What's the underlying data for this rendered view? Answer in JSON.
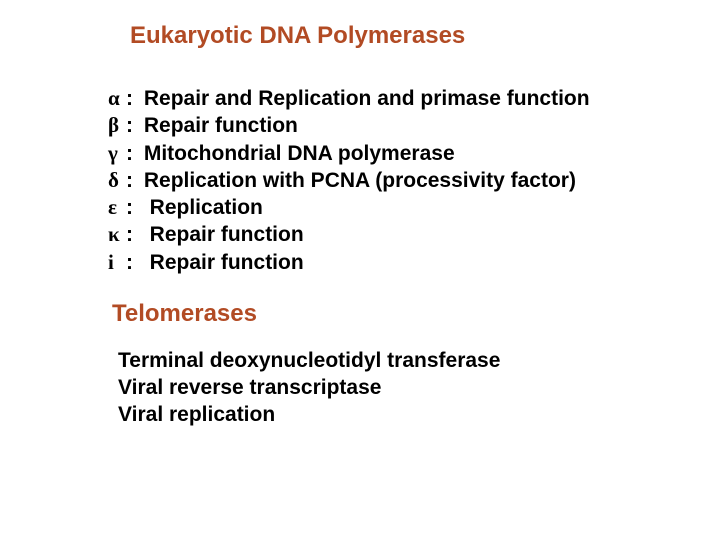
{
  "title_color": "#b24b24",
  "text_color": "#000000",
  "background_color": "#ffffff",
  "title_fontsize": 24,
  "body_fontsize": 21,
  "heading1": "Eukaryotic DNA Polymerases",
  "polymerases": {
    "alpha": {
      "symbol": "α",
      "sep": " :",
      "desc": "Repair and Replication and primase function"
    },
    "beta": {
      "symbol": "β",
      "sep": " :",
      "desc": "Repair function"
    },
    "gamma": {
      "symbol": "γ",
      "sep": " :",
      "desc": "Mitochondrial DNA polymerase"
    },
    "delta": {
      "symbol": "δ",
      "sep": " :",
      "desc": "Replication with PCNA (processivity factor)"
    },
    "epsilon": {
      "symbol": "ε",
      "sep": ":",
      "desc": "Replication"
    },
    "kappa": {
      "symbol": "κ",
      "sep": ":",
      "desc": "Repair function"
    },
    "iota": {
      "symbol": "i",
      "sep": ":",
      "desc": "Repair function"
    }
  },
  "heading2": "Telomerases",
  "telomerases": {
    "line1": "Terminal deoxynucleotidyl transferase",
    "line2": "Viral reverse transcriptase",
    "line3": "Viral replication"
  }
}
